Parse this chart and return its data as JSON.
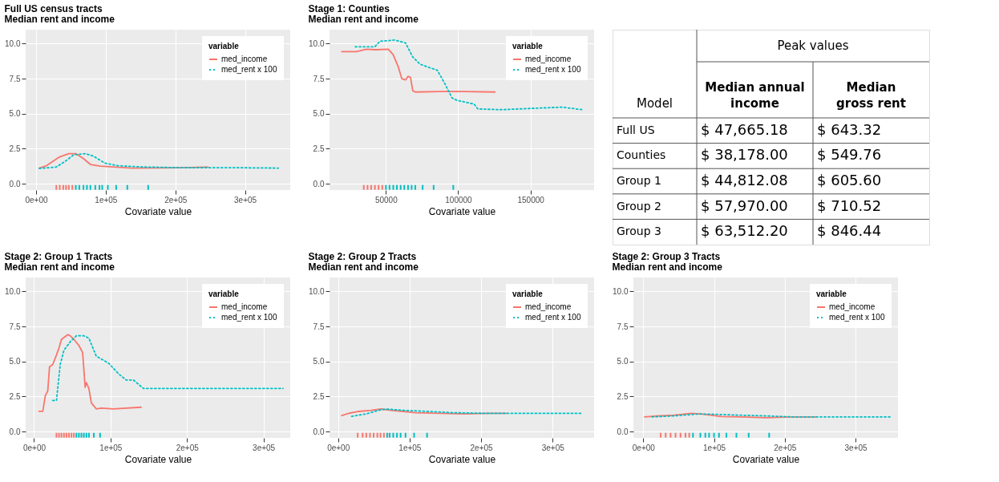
{
  "chart_data": [
    {
      "type": "line",
      "title": "Full US census tracts",
      "subtitle": "Median rent and income",
      "xlabel": "Covariate value",
      "legend_title": "variable",
      "legend": "top right",
      "grid": true,
      "xlim": [
        -15000,
        365000
      ],
      "xticks": [
        {
          "value": 0,
          "label": "0e+00"
        },
        {
          "value": 100000,
          "label": "1e+05"
        },
        {
          "value": 200000,
          "label": "2e+05"
        },
        {
          "value": 300000,
          "label": "3e+05"
        }
      ],
      "ylim": [
        -0.45,
        11.0
      ],
      "yticks": [
        {
          "value": 0,
          "label": "0.0"
        },
        {
          "value": 2.5,
          "label": "2.5"
        },
        {
          "value": 5,
          "label": "5.0"
        },
        {
          "value": 7.5,
          "label": "7.5"
        },
        {
          "value": 10,
          "label": "10.0"
        }
      ],
      "series": [
        {
          "name": "med_income",
          "type": "line",
          "color": "#f8766d",
          "line_style": "solid",
          "x": [
            4600,
            15000,
            33000,
            47000,
            57000,
            68000,
            78000,
            92000,
            110000,
            138000,
            208000,
            247000
          ],
          "values": [
            1.12,
            1.29,
            1.9,
            2.15,
            2.15,
            1.8,
            1.38,
            1.26,
            1.2,
            1.12,
            1.15,
            1.19
          ]
        },
        {
          "name": "med_rent x 100",
          "type": "line",
          "color": "#00bfc4",
          "line_style": "dotted",
          "x": [
            4600,
            18600,
            29000,
            43000,
            54000,
            71000,
            82000,
            99000,
            117000,
            152000,
            208000,
            278000,
            348000
          ],
          "values": [
            1.09,
            1.15,
            1.2,
            1.64,
            2.07,
            2.15,
            1.98,
            1.47,
            1.29,
            1.2,
            1.15,
            1.15,
            1.12
          ]
        },
        {
          "type": "bar",
          "color": "#f8766d",
          "x": [
            29000,
            34000,
            39000,
            43000,
            47000,
            52000
          ],
          "base": [
            -0.43,
            -0.43,
            -0.43,
            -0.43,
            -0.43,
            -0.43
          ],
          "values": [
            0.34,
            0.34,
            0.34,
            0.34,
            0.34,
            0.34
          ]
        },
        {
          "type": "bar",
          "color": "#00bfc4",
          "x": [
            57000,
            62000,
            68000,
            73000,
            78000,
            85000,
            91000,
            95000,
            103000,
            115000,
            131000,
            161000
          ],
          "base": [
            -0.43,
            -0.43,
            -0.43,
            -0.43,
            -0.43,
            -0.43,
            -0.43,
            -0.43,
            -0.43,
            -0.43,
            -0.43,
            -0.43
          ],
          "values": [
            0.34,
            0.34,
            0.34,
            0.34,
            0.34,
            0.34,
            0.34,
            0.34,
            0.34,
            0.34,
            0.34,
            0.34
          ]
        }
      ]
    },
    {
      "type": "line",
      "title": "Stage 1: Counties",
      "subtitle": "Median rent and income",
      "xlabel": "Covariate value",
      "legend_title": "variable",
      "legend": "top right",
      "grid": true,
      "xlim": [
        11000,
        194000
      ],
      "xticks": [
        {
          "value": 50000,
          "label": "50000"
        },
        {
          "value": 100000,
          "label": "100000"
        },
        {
          "value": 150000,
          "label": "150000"
        }
      ],
      "ylim": [
        -0.45,
        11.0
      ],
      "yticks": [
        {
          "value": 0,
          "label": "0.0"
        },
        {
          "value": 2.5,
          "label": "2.5"
        },
        {
          "value": 5,
          "label": "5.0"
        },
        {
          "value": 7.5,
          "label": "7.5"
        },
        {
          "value": 10,
          "label": "10.0"
        }
      ],
      "series": [
        {
          "name": "med_income",
          "type": "line",
          "color": "#f8766d",
          "line_style": "solid",
          "x": [
            19500,
            29700,
            36400,
            43200,
            51700,
            55000,
            58500,
            61000,
            63600,
            65300,
            67000,
            68600,
            70300,
            87300,
            104000,
            125400
          ],
          "values": [
            9.43,
            9.43,
            9.6,
            9.57,
            9.6,
            9.22,
            8.36,
            7.5,
            7.41,
            7.67,
            7.59,
            6.64,
            6.55,
            6.59,
            6.59,
            6.55
          ]
        },
        {
          "name": "med_rent x 100",
          "type": "line",
          "color": "#00bfc4",
          "line_style": "dotted",
          "x": [
            28800,
            42400,
            45800,
            56000,
            63600,
            68600,
            73700,
            80500,
            85600,
            90700,
            95800,
            99200,
            111000,
            113600,
            129700,
            155000,
            172000,
            185600
          ],
          "values": [
            9.78,
            9.78,
            10.17,
            10.26,
            10.05,
            9.05,
            8.53,
            8.28,
            8.1,
            7.16,
            6.12,
            5.95,
            5.69,
            5.34,
            5.29,
            5.4,
            5.47,
            5.29
          ]
        },
        {
          "type": "bar",
          "color": "#f8766d",
          "x": [
            34700,
            37300,
            39800,
            42400,
            44900,
            47500
          ],
          "base": [
            -0.43,
            -0.43,
            -0.43,
            -0.43,
            -0.43,
            -0.43
          ],
          "values": [
            0.34,
            0.34,
            0.34,
            0.34,
            0.34,
            0.34
          ]
        },
        {
          "type": "bar",
          "color": "#00bfc4",
          "x": [
            50000,
            52500,
            55100,
            57600,
            60200,
            62700,
            65300,
            67800,
            70300,
            75400,
            83000,
            96600
          ],
          "base": [
            -0.43,
            -0.43,
            -0.43,
            -0.43,
            -0.43,
            -0.43,
            -0.43,
            -0.43,
            -0.43,
            -0.43,
            -0.43,
            -0.43
          ],
          "values": [
            0.34,
            0.34,
            0.34,
            0.34,
            0.34,
            0.34,
            0.34,
            0.34,
            0.34,
            0.34,
            0.34,
            0.34
          ]
        }
      ]
    },
    {
      "type": "other",
      "annotations": [
        "Peak values",
        "Model",
        "Median annual income",
        "Median gross rent",
        "Full US",
        "$ 47,665.18",
        "$ 643.32",
        "Counties",
        "$ 38,178.00",
        "$ 549.76",
        "Group 1",
        "$ 44,812.08",
        "$ 605.60",
        "Group 2",
        "$ 57,970.00",
        "$ 710.52",
        "Group 3",
        "$ 63,512.20",
        "$ 846.44"
      ]
    },
    {
      "type": "line",
      "title": "Stage 2: Group 1 Tracts",
      "subtitle": "Median rent and income",
      "xlabel": "Covariate value",
      "legend_title": "variable",
      "legend": "top right",
      "grid": true,
      "xlim": [
        -11000,
        335000
      ],
      "xticks": [
        {
          "value": 0,
          "label": "0e+00"
        },
        {
          "value": 100000,
          "label": "1e+05"
        },
        {
          "value": 200000,
          "label": "2e+05"
        },
        {
          "value": 300000,
          "label": "3e+05"
        }
      ],
      "ylim": [
        -0.45,
        11.0
      ],
      "yticks": [
        {
          "value": 0,
          "label": "0.0"
        },
        {
          "value": 2.5,
          "label": "2.5"
        },
        {
          "value": 5,
          "label": "5.0"
        },
        {
          "value": 7.5,
          "label": "7.5"
        },
        {
          "value": 10,
          "label": "10.0"
        }
      ],
      "series": [
        {
          "name": "med_income",
          "type": "line",
          "color": "#f8766d",
          "line_style": "solid",
          "x": [
            6500,
            11400,
            14700,
            17900,
            20200,
            24400,
            29300,
            32600,
            35800,
            44000,
            47200,
            52100,
            58600,
            63500,
            65100,
            66800,
            68400,
            71700,
            74900,
            81400,
            87900,
            104000,
            140000
          ],
          "values": [
            1.45,
            1.45,
            2.56,
            2.9,
            4.62,
            4.79,
            5.47,
            5.98,
            6.58,
            6.92,
            6.84,
            6.58,
            6.15,
            5.64,
            4.44,
            3.16,
            3.5,
            3.08,
            2.05,
            1.62,
            1.68,
            1.62,
            1.74
          ]
        },
        {
          "name": "med_rent x 100",
          "type": "line",
          "color": "#00bfc4",
          "line_style": "dotted",
          "x": [
            24400,
            29300,
            34200,
            39100,
            47200,
            55400,
            65100,
            71700,
            81400,
            97700,
            111000,
            120500,
            130000,
            143000,
            195000,
            260600,
            325700
          ],
          "values": [
            2.22,
            2.22,
            4.79,
            5.81,
            6.41,
            6.84,
            6.84,
            6.67,
            5.38,
            4.87,
            4.1,
            3.68,
            3.68,
            3.08,
            3.08,
            3.08,
            3.08
          ]
        },
        {
          "type": "bar",
          "color": "#f8766d",
          "x": [
            29300,
            32600,
            35800,
            39100,
            42300,
            45600,
            48900,
            52100
          ],
          "base": [
            -0.43,
            -0.43,
            -0.43,
            -0.43,
            -0.43,
            -0.43,
            -0.43,
            -0.43
          ],
          "values": [
            0.34,
            0.34,
            0.34,
            0.34,
            0.34,
            0.34,
            0.34,
            0.34
          ]
        },
        {
          "type": "bar",
          "color": "#00bfc4",
          "x": [
            55400,
            58600,
            61900,
            65100,
            68400,
            71700,
            78200,
            86300
          ],
          "base": [
            -0.43,
            -0.43,
            -0.43,
            -0.43,
            -0.43,
            -0.43,
            -0.43,
            -0.43
          ],
          "values": [
            0.34,
            0.34,
            0.34,
            0.34,
            0.34,
            0.34,
            0.34,
            0.34
          ]
        }
      ]
    },
    {
      "type": "line",
      "title": "Stage 2: Group 2 Tracts",
      "subtitle": "Median rent and income",
      "xlabel": "Covariate value",
      "legend_title": "variable",
      "legend": "top right",
      "grid": true,
      "xlim": [
        -12000,
        358000
      ],
      "xticks": [
        {
          "value": 0,
          "label": "0e+00"
        },
        {
          "value": 100000,
          "label": "1e+05"
        },
        {
          "value": 200000,
          "label": "2e+05"
        },
        {
          "value": 300000,
          "label": "3e+05"
        }
      ],
      "ylim": [
        -0.45,
        11.0
      ],
      "yticks": [
        {
          "value": 0,
          "label": "0.0"
        },
        {
          "value": 2.5,
          "label": "2.5"
        },
        {
          "value": 5,
          "label": "5.0"
        },
        {
          "value": 7.5,
          "label": "7.5"
        },
        {
          "value": 10,
          "label": "10.0"
        }
      ],
      "series": [
        {
          "name": "med_income",
          "type": "line",
          "color": "#f8766d",
          "line_style": "solid",
          "x": [
            5100,
            15400,
            29100,
            46300,
            60000,
            73700,
            90800,
            108000,
            142000,
            176500,
            210800,
            234800
          ],
          "values": [
            1.14,
            1.31,
            1.44,
            1.52,
            1.61,
            1.52,
            1.44,
            1.35,
            1.3,
            1.26,
            1.3,
            1.3
          ]
        },
        {
          "name": "med_rent x 100",
          "type": "line",
          "color": "#00bfc4",
          "line_style": "dotted",
          "x": [
            18900,
            39400,
            56600,
            66800,
            90800,
            125000,
            159400,
            210800,
            279400,
            341000
          ],
          "values": [
            1.09,
            1.26,
            1.52,
            1.61,
            1.52,
            1.44,
            1.35,
            1.3,
            1.3,
            1.3
          ]
        },
        {
          "type": "bar",
          "color": "#f8766d",
          "x": [
            27400,
            34300,
            39400,
            44600,
            49700,
            54900,
            59300,
            64100
          ],
          "base": [
            -0.43,
            -0.43,
            -0.43,
            -0.43,
            -0.43,
            -0.43,
            -0.43,
            -0.43
          ],
          "values": [
            0.34,
            0.34,
            0.34,
            0.34,
            0.34,
            0.34,
            0.34,
            0.34
          ]
        },
        {
          "type": "bar",
          "color": "#00bfc4",
          "x": [
            68600,
            72000,
            77100,
            82300,
            87400,
            94300,
            106300,
            124400
          ],
          "base": [
            -0.43,
            -0.43,
            -0.43,
            -0.43,
            -0.43,
            -0.43,
            -0.43,
            -0.43
          ],
          "values": [
            0.34,
            0.34,
            0.34,
            0.34,
            0.34,
            0.34,
            0.34,
            0.34
          ]
        }
      ]
    },
    {
      "type": "line",
      "title": "Stage 2: Group 3 Tracts",
      "subtitle": "Median rent and income",
      "xlabel": "Covariate value",
      "legend_title": "variable",
      "legend": "top right",
      "grid": true,
      "xlim": [
        -14000,
        360000
      ],
      "xticks": [
        {
          "value": 0,
          "label": "0e+00"
        },
        {
          "value": 100000,
          "label": "1e+05"
        },
        {
          "value": 200000,
          "label": "2e+05"
        },
        {
          "value": 300000,
          "label": "3e+05"
        }
      ],
      "ylim": [
        -0.45,
        11.0
      ],
      "yticks": [
        {
          "value": 0,
          "label": "0.0"
        },
        {
          "value": 2.5,
          "label": "2.5"
        },
        {
          "value": 5,
          "label": "5.0"
        },
        {
          "value": 7.5,
          "label": "7.5"
        },
        {
          "value": 10,
          "label": "10.0"
        }
      ],
      "series": [
        {
          "name": "med_income",
          "type": "line",
          "color": "#f8766d",
          "line_style": "solid",
          "x": [
            1800,
            19300,
            43900,
            68400,
            86000,
            110500,
            138600,
            173700,
            208800,
            243900
          ],
          "values": [
            1.05,
            1.12,
            1.17,
            1.3,
            1.23,
            1.08,
            1.05,
            0.99,
            1.05,
            1.05
          ]
        },
        {
          "name": "med_rent x 100",
          "type": "line",
          "color": "#00bfc4",
          "line_style": "dotted",
          "x": [
            12300,
            43900,
            79000,
            103500,
            138600,
            173700,
            208800,
            243900,
            278900,
            349000
          ],
          "values": [
            1.05,
            1.12,
            1.26,
            1.23,
            1.17,
            1.12,
            1.05,
            1.05,
            1.05,
            1.05
          ]
        },
        {
          "type": "bar",
          "color": "#f8766d",
          "x": [
            24600,
            31600,
            38600,
            45600,
            52600,
            59600,
            64900
          ],
          "base": [
            -0.43,
            -0.43,
            -0.43,
            -0.43,
            -0.43,
            -0.43,
            -0.43
          ],
          "values": [
            0.34,
            0.34,
            0.34,
            0.34,
            0.34,
            0.34,
            0.34
          ]
        },
        {
          "type": "bar",
          "color": "#00bfc4",
          "x": [
            70200,
            80700,
            87700,
            93000,
            100000,
            107000,
            117500,
            131600,
            149000,
            177900
          ],
          "base": [
            -0.43,
            -0.43,
            -0.43,
            -0.43,
            -0.43,
            -0.43,
            -0.43,
            -0.43,
            -0.43,
            -0.43
          ],
          "values": [
            0.34,
            0.34,
            0.34,
            0.34,
            0.34,
            0.34,
            0.34,
            0.34,
            0.34,
            0.34
          ]
        }
      ]
    }
  ]
}
